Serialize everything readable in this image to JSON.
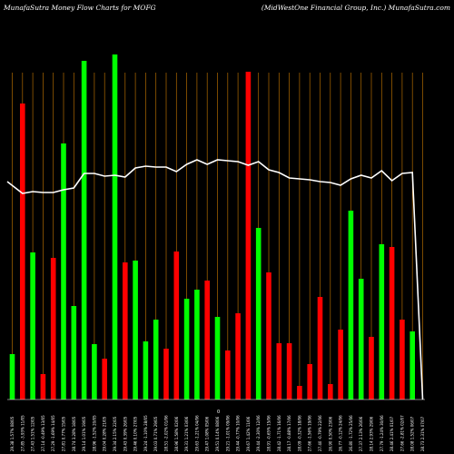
{
  "header": {
    "left": "MunafaSutra  Money Flow  Charts for MOFG",
    "right": "(MidWestOne   Financial Group, Inc.) MunafaSutra.com"
  },
  "center_marker": "0",
  "chart_data": {
    "type": "bar",
    "title": "MunafaSutra  Money Flow  Charts for MOFG",
    "subtitle": "(MidWestOne   Financial Group, Inc.) MunafaSutra.com",
    "categories": [
      "29.38 1.57% 08/05",
      "27.85 -3.93% 11/05",
      "27.43 1.51% 12/05",
      "27.14 -0.49% 13/05",
      "27.29 -1.69% 14/05",
      "27.81 0.77% 15/05",
      "28.74 3.28% 18/05",
      "29.14 1.01% 19/05",
      "28.96 -1.52% 20/05",
      "29.04 0.28% 21/05",
      "29.34 2.15% 22/05",
      "29.43 0.39% 26/05",
      "29.46 0.10% 27/05",
      "29.24 -1.10% 28/05",
      "29.03 0.71% 29/05",
      "28.51 -2.02% 01/06",
      "28.96 1.58% 02/06",
      "29.31 1.21% 03/06",
      "29.63 -1.21% 04/06",
      "29.47 1.08% 05/06",
      "29.51 0.14% 08/06",
      "29.21 -1.01% 09/06",
      "29.44 -0.77% 10/06",
      "29.67 1.42% 11/06",
      "29.44 -2.30% 12/06",
      "28.91 -0.65% 15/06",
      "28.42 -1.71% 16/06",
      "28.17 -0.88% 17/06",
      "28.09 -0.32% 18/06",
      "27.66 -1.56% 19/06",
      "27.40 -0.79% 22/06",
      "26.90 0.50% 23/06",
      "26.77 -0.12% 24/06",
      "26.80 -1.72% 25/06",
      "27.37 2.13% 26/06",
      "28.14 2.93% 29/06",
      "27.79 -1.24% 30/06",
      "28.46 2.41% 01/07",
      "27.66 -2.81% 02/07",
      "28.08 1.52% 06/07",
      "28.73 2.31% 07/07"
    ],
    "series": [
      {
        "colors": [
          "#00ff00",
          "#ff0000",
          "#00ff00",
          "#ff0000",
          "#ff0000",
          "#00ff00",
          "#00ff00",
          "#00ff00",
          "#00ff00",
          "#ff0000",
          "#00ff00",
          "#ff0000",
          "#00ff00",
          "#00ff00",
          "#00ff00",
          "#ff0000",
          "#ff0000",
          "#00ff00",
          "#00ff00",
          "#ff0000",
          "#00ff00",
          "#ff0000",
          "#ff0000",
          "#ff0000",
          "#00ff00",
          "#ff0000",
          "#ff0000",
          "#ff0000",
          "#ff0000",
          "#ff0000",
          "#ff0000",
          "#ff0000",
          "#ff0000",
          "#00ff00",
          "#00ff00",
          "#ff0000",
          "#00ff00",
          "#ff0000",
          "#ff0000",
          "#00ff00",
          "#00ff00"
        ],
        "values": [
          50,
          326,
          162,
          28,
          156,
          282,
          103,
          373,
          61,
          45,
          380,
          151,
          153,
          64,
          88,
          56,
          163,
          111,
          121,
          131,
          91,
          54,
          95,
          361,
          189,
          140,
          62,
          62,
          15,
          39,
          113,
          17,
          77,
          208,
          133,
          69,
          171,
          168,
          88,
          75,
          0
        ]
      },
      {
        "type": "line",
        "values": [
          240,
          227,
          229,
          228,
          228,
          231,
          233,
          249,
          249,
          246,
          247,
          245,
          255,
          257,
          256,
          256,
          251,
          259,
          264,
          259,
          264,
          263,
          262,
          258,
          262,
          253,
          250,
          244,
          243,
          242,
          240,
          239,
          236,
          243,
          247,
          244,
          252,
          241,
          249,
          250,
          0
        ]
      }
    ],
    "ylim": [
      0,
      380
    ],
    "grid": "vertical"
  }
}
